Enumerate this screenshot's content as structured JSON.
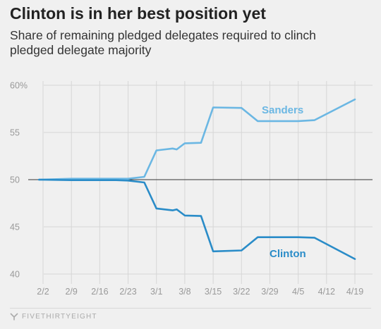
{
  "header": {
    "title": "Clinton is in her best position yet",
    "subtitle": "Share of remaining pledged delegates required to clinch pledged delegate majority"
  },
  "footer": {
    "brand": "FIVETHIRTYEIGHT"
  },
  "colors": {
    "sanders": "#6bb7e3",
    "clinton": "#2a8cc8",
    "grid": "#d6d6d6",
    "baseline": "#333333",
    "tick_text": "#999999"
  },
  "chart_data": {
    "type": "line",
    "title": "Clinton is in her best position yet",
    "subtitle": "Share of remaining pledged delegates required to clinch pledged delegate majority",
    "xlabel": "",
    "ylabel": "",
    "x_ticks": [
      "2/2",
      "2/9",
      "2/16",
      "2/23",
      "3/1",
      "3/8",
      "3/15",
      "3/22",
      "3/29",
      "4/5",
      "4/12",
      "4/19"
    ],
    "y_ticks": [
      40,
      45,
      50,
      55,
      60
    ],
    "y_tick_labels": [
      "40",
      "45",
      "50",
      "55",
      "60%"
    ],
    "ylim": [
      40,
      60
    ],
    "xlim": [
      "2/2",
      "4/19"
    ],
    "grid": true,
    "series": [
      {
        "name": "Sanders",
        "color": "#6bb7e3",
        "points": [
          [
            "2/1",
            50.0
          ],
          [
            "2/9",
            50.1
          ],
          [
            "2/20",
            50.1
          ],
          [
            "2/23",
            50.1
          ],
          [
            "2/27",
            50.3
          ],
          [
            "3/1",
            53.1
          ],
          [
            "3/5",
            53.3
          ],
          [
            "3/6",
            53.2
          ],
          [
            "3/8",
            53.85
          ],
          [
            "3/12",
            53.9
          ],
          [
            "3/15",
            57.65
          ],
          [
            "3/22",
            57.6
          ],
          [
            "3/26",
            56.2
          ],
          [
            "4/5",
            56.2
          ],
          [
            "4/9",
            56.3
          ],
          [
            "4/19",
            58.5
          ]
        ]
      },
      {
        "name": "Clinton",
        "color": "#2a8cc8",
        "points": [
          [
            "2/1",
            50.0
          ],
          [
            "2/9",
            49.95
          ],
          [
            "2/20",
            49.95
          ],
          [
            "2/23",
            49.9
          ],
          [
            "2/27",
            49.7
          ],
          [
            "3/1",
            46.95
          ],
          [
            "3/5",
            46.75
          ],
          [
            "3/6",
            46.85
          ],
          [
            "3/8",
            46.2
          ],
          [
            "3/12",
            46.15
          ],
          [
            "3/15",
            42.4
          ],
          [
            "3/22",
            42.5
          ],
          [
            "3/26",
            43.9
          ],
          [
            "4/5",
            43.9
          ],
          [
            "4/9",
            43.85
          ],
          [
            "4/19",
            41.6
          ]
        ]
      }
    ],
    "annotations": [
      {
        "text": "Sanders",
        "series": "Sanders"
      },
      {
        "text": "Clinton",
        "series": "Clinton"
      }
    ]
  }
}
